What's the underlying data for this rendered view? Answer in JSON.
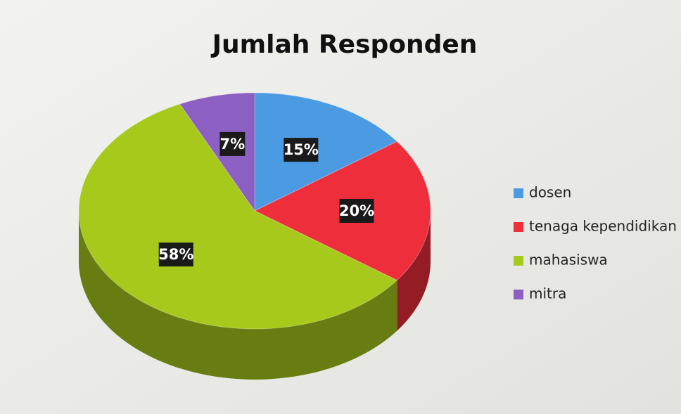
{
  "chart_data": {
    "type": "pie",
    "title": "Jumlah Responden",
    "categories": [
      "dosen",
      "tenaga kependidikan",
      "mahasiswa",
      "mitra"
    ],
    "values": [
      15,
      20,
      58,
      7
    ],
    "value_labels": [
      "15%",
      "20%",
      "58%",
      "7%"
    ],
    "colors": [
      "#4b9be3",
      "#ee2f3b",
      "#a6c91c",
      "#8c5fc3"
    ],
    "legend": "right"
  }
}
